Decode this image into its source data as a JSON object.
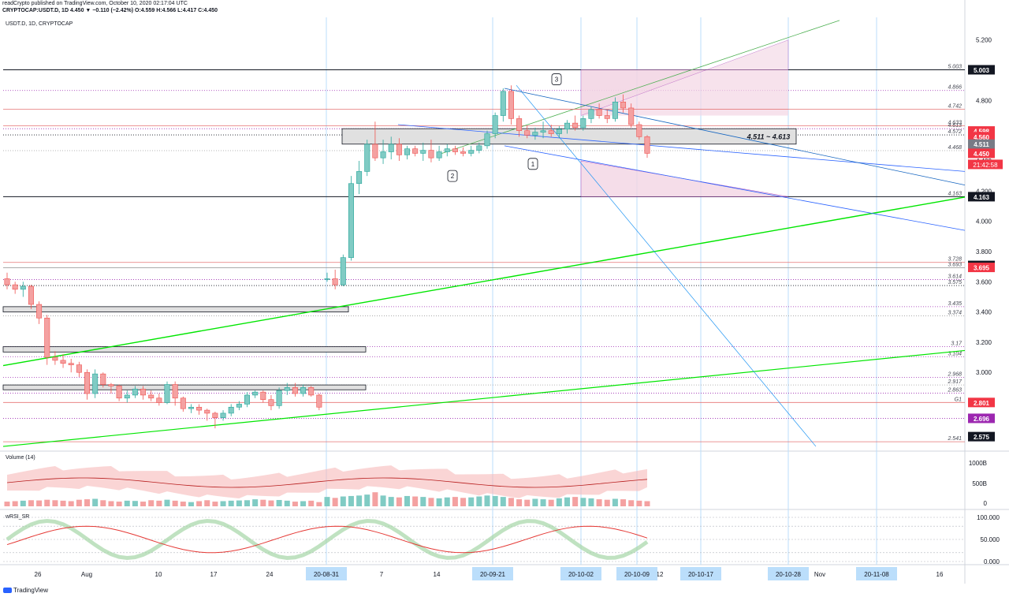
{
  "header": {
    "publisher_line": "readCrypto published on TradingView.com, October 10, 2020 02:17:04 UTC",
    "ticker_line": "CRYPTOCAP:USDT.D, 1D 4.450 ▼ −0.110 (−2.42%) O:4.559 H:4.566 L:4.417 C:4.450"
  },
  "footer": {
    "brand": "TradingView"
  },
  "chart_data": {
    "type": "candlestick",
    "symbol_label": "USDT.D, 1D, CRYPTOCAP",
    "ylim": [
      2.5,
      5.35
    ],
    "y_ticks": [
      5.2,
      4.8,
      4.6,
      4.4,
      4.2,
      4.0,
      3.8,
      3.6,
      3.4,
      3.2,
      3.0,
      2.8
    ],
    "y_tick_labels": [
      "5.200",
      "4.800",
      "4.600",
      "4.400",
      "4.200",
      "4.000",
      "3.800",
      "3.600",
      "3.400",
      "3.200",
      "3.000",
      "2.800"
    ],
    "x_labels": [
      "26",
      "Aug",
      "10",
      "17",
      "24",
      "7",
      "14",
      "12",
      "Nov",
      "16"
    ],
    "highlighted_dates": [
      "20-08-31",
      "20-09-21",
      "20-10-02",
      "20-10-09",
      "20-10-17",
      "20-10-28",
      "20-11-08"
    ],
    "candles": [
      [
        3.62,
        3.66,
        3.55,
        3.58
      ],
      [
        3.58,
        3.6,
        3.52,
        3.55
      ],
      [
        3.55,
        3.6,
        3.5,
        3.57
      ],
      [
        3.57,
        3.58,
        3.42,
        3.45
      ],
      [
        3.45,
        3.47,
        3.32,
        3.36
      ],
      [
        3.36,
        3.38,
        3.05,
        3.1
      ],
      [
        3.1,
        3.14,
        3.05,
        3.08
      ],
      [
        3.08,
        3.12,
        3.03,
        3.06
      ],
      [
        3.06,
        3.09,
        3.0,
        3.05
      ],
      [
        3.05,
        3.07,
        2.97,
        3.0
      ],
      [
        3.0,
        3.02,
        2.82,
        2.86
      ],
      [
        2.86,
        3.02,
        2.83,
        2.99
      ],
      [
        2.99,
        3.0,
        2.9,
        2.92
      ],
      [
        2.92,
        2.93,
        2.86,
        2.91
      ],
      [
        2.91,
        2.92,
        2.81,
        2.83
      ],
      [
        2.83,
        2.88,
        2.8,
        2.85
      ],
      [
        2.85,
        2.91,
        2.83,
        2.89
      ],
      [
        2.89,
        2.91,
        2.82,
        2.85
      ],
      [
        2.85,
        2.88,
        2.81,
        2.83
      ],
      [
        2.83,
        2.86,
        2.78,
        2.8
      ],
      [
        2.8,
        2.94,
        2.79,
        2.92
      ],
      [
        2.92,
        2.94,
        2.78,
        2.83
      ],
      [
        2.83,
        2.84,
        2.74,
        2.76
      ],
      [
        2.76,
        2.79,
        2.73,
        2.77
      ],
      [
        2.77,
        2.79,
        2.72,
        2.75
      ],
      [
        2.75,
        2.76,
        2.68,
        2.73
      ],
      [
        2.73,
        2.74,
        2.63,
        2.7
      ],
      [
        2.7,
        2.75,
        2.68,
        2.73
      ],
      [
        2.73,
        2.79,
        2.71,
        2.77
      ],
      [
        2.77,
        2.81,
        2.75,
        2.79
      ],
      [
        2.79,
        2.87,
        2.77,
        2.85
      ],
      [
        2.85,
        2.88,
        2.83,
        2.87
      ],
      [
        2.87,
        2.88,
        2.8,
        2.82
      ],
      [
        2.82,
        2.85,
        2.75,
        2.78
      ],
      [
        2.78,
        2.9,
        2.76,
        2.88
      ],
      [
        2.88,
        2.93,
        2.85,
        2.9
      ],
      [
        2.9,
        2.93,
        2.84,
        2.86
      ],
      [
        2.86,
        2.92,
        2.84,
        2.9
      ],
      [
        2.9,
        2.91,
        2.84,
        2.85
      ],
      [
        2.85,
        2.86,
        2.75,
        2.77
      ],
      [
        3.62,
        3.66,
        3.6,
        3.62
      ],
      [
        3.62,
        3.68,
        3.55,
        3.58
      ],
      [
        3.58,
        3.78,
        3.57,
        3.76
      ],
      [
        3.76,
        4.3,
        3.74,
        4.25
      ],
      [
        4.25,
        4.4,
        4.18,
        4.33
      ],
      [
        4.33,
        4.54,
        4.3,
        4.51
      ],
      [
        4.51,
        4.66,
        4.4,
        4.42
      ],
      [
        4.42,
        4.54,
        4.38,
        4.46
      ],
      [
        4.46,
        4.56,
        4.41,
        4.51
      ],
      [
        4.51,
        4.55,
        4.4,
        4.44
      ],
      [
        4.44,
        4.5,
        4.41,
        4.48
      ],
      [
        4.48,
        4.5,
        4.43,
        4.45
      ],
      [
        4.45,
        4.52,
        4.4,
        4.47
      ],
      [
        4.47,
        4.54,
        4.39,
        4.42
      ],
      [
        4.42,
        4.5,
        4.4,
        4.46
      ],
      [
        4.46,
        4.51,
        4.43,
        4.48
      ],
      [
        4.48,
        4.5,
        4.44,
        4.46
      ],
      [
        4.46,
        4.49,
        4.43,
        4.45
      ],
      [
        4.45,
        4.5,
        4.43,
        4.47
      ],
      [
        4.47,
        4.52,
        4.45,
        4.5
      ],
      [
        4.5,
        4.6,
        4.48,
        4.58
      ],
      [
        4.58,
        4.72,
        4.55,
        4.7
      ],
      [
        4.7,
        4.88,
        4.66,
        4.86
      ],
      [
        4.86,
        4.9,
        4.64,
        4.68
      ],
      [
        4.68,
        4.7,
        4.56,
        4.6
      ],
      [
        4.6,
        4.63,
        4.55,
        4.57
      ],
      [
        4.57,
        4.62,
        4.54,
        4.59
      ],
      [
        4.59,
        4.66,
        4.55,
        4.6
      ],
      [
        4.6,
        4.64,
        4.56,
        4.58
      ],
      [
        4.58,
        4.63,
        4.55,
        4.61
      ],
      [
        4.61,
        4.67,
        4.58,
        4.65
      ],
      [
        4.65,
        4.7,
        4.6,
        4.62
      ],
      [
        4.62,
        4.7,
        4.6,
        4.68
      ],
      [
        4.68,
        4.76,
        4.65,
        4.74
      ],
      [
        4.74,
        4.78,
        4.68,
        4.7
      ],
      [
        4.7,
        4.74,
        4.65,
        4.68
      ],
      [
        4.68,
        4.82,
        4.66,
        4.79
      ],
      [
        4.79,
        4.84,
        4.72,
        4.75
      ],
      [
        4.75,
        4.78,
        4.62,
        4.64
      ],
      [
        4.64,
        4.66,
        4.54,
        4.56
      ],
      [
        4.56,
        4.57,
        4.42,
        4.45
      ]
    ],
    "candle_dates_note": "",
    "volume": [
      20,
      22,
      24,
      26,
      25,
      28,
      26,
      24,
      22,
      28,
      30,
      32,
      26,
      22,
      20,
      24,
      23,
      20,
      26,
      24,
      28,
      24,
      20,
      18,
      22,
      26,
      20,
      22,
      24,
      25,
      26,
      30,
      28,
      25,
      27,
      24,
      20,
      22,
      24,
      18,
      40,
      36,
      42,
      44,
      46,
      50,
      60,
      46,
      40,
      38,
      44,
      42,
      40,
      36,
      34,
      38,
      40,
      36,
      38,
      42,
      46,
      44,
      40,
      36,
      30,
      28,
      32,
      30,
      28,
      34,
      38,
      40,
      36,
      34,
      30,
      28,
      32,
      30,
      26,
      24,
      22
    ],
    "volume_axis": {
      "ticks": [
        "1000B",
        "500B",
        "0"
      ]
    },
    "rsi_axis": {
      "ticks": [
        "100.000",
        "50.000",
        "0.000"
      ]
    },
    "panel_labels": {
      "volume": "Volume (14)",
      "rsi": "wRSI_SR"
    },
    "horizontal_levels": [
      {
        "value": 5.003,
        "label": "5.003",
        "style": "solid",
        "color": "#131722",
        "badge": true
      },
      {
        "value": 4.866,
        "label": "4.866",
        "style": "dotted",
        "color": "#9c27b0"
      },
      {
        "value": 4.742,
        "label": "4.742",
        "style": "solid",
        "color": "#e57373"
      },
      {
        "value": 4.633,
        "label": "4.633",
        "style": "solid",
        "color": "#e57373"
      },
      {
        "value": 4.613,
        "label": "4.613",
        "style": "dotted",
        "color": "#9c27b0"
      },
      {
        "value": 4.572,
        "label": "4.572",
        "style": "dotted",
        "color": "#131722"
      },
      {
        "value": 4.468,
        "label": "4.468",
        "style": "dotted",
        "color": "#9e9e9e"
      },
      {
        "value": 4.163,
        "label": "4.163",
        "style": "solid",
        "color": "#131722",
        "badge": true
      },
      {
        "value": 3.728,
        "label": "3.728",
        "style": "solid",
        "color": "#e57373"
      },
      {
        "value": 3.693,
        "label": "3.693",
        "style": "solid",
        "color": "#9e9e9e"
      },
      {
        "value": 3.614,
        "label": "3.614",
        "style": "dotted",
        "color": "#9c27b0"
      },
      {
        "value": 3.575,
        "label": "3.575",
        "style": "dotted",
        "color": "#131722"
      },
      {
        "value": 3.435,
        "label": "3.435",
        "style": "dotted",
        "color": "#9c27b0"
      },
      {
        "value": 3.374,
        "label": "3.374",
        "style": "dotted",
        "color": "#9e9e9e"
      },
      {
        "value": 3.17,
        "label": "3.17",
        "style": "dotted",
        "color": "#9c27b0"
      },
      {
        "value": 3.104,
        "label": "3.104",
        "style": "dotted",
        "color": "#9c27b0"
      },
      {
        "value": 2.968,
        "label": "2.968",
        "style": "dotted",
        "color": "#9c27b0"
      },
      {
        "value": 2.917,
        "label": "2.917",
        "style": "dotted",
        "color": "#9e9e9e"
      },
      {
        "value": 2.863,
        "label": "2.863",
        "style": "dotted",
        "color": "#9c27b0"
      },
      {
        "value": 2.801,
        "label": "G1",
        "style": "solid",
        "color": "#e57373"
      },
      {
        "value": 2.696,
        "label": "",
        "style": "dotted",
        "color": "#9c27b0"
      },
      {
        "value": 2.541,
        "label": "2.541",
        "style": "solid",
        "color": "#e57373"
      }
    ],
    "price_badges": [
      {
        "value": 5.003,
        "label": "5.003",
        "bg": "#131722"
      },
      {
        "value": 4.598,
        "label": "4.598",
        "bg": "#f23645"
      },
      {
        "value": 4.56,
        "label": "4.560",
        "bg": "#f23645"
      },
      {
        "value": 4.511,
        "label": "4.511",
        "bg": "#787b86"
      },
      {
        "value": 4.45,
        "label": "4.450",
        "bg": "#f23645"
      },
      {
        "value": 4.163,
        "label": "4.163",
        "bg": "#131722"
      },
      {
        "value": 3.708,
        "label": "3.708",
        "bg": "#131722"
      },
      {
        "value": 3.695,
        "label": "3.695",
        "bg": "#f23645"
      },
      {
        "value": 2.801,
        "label": "2.801",
        "bg": "#f23645"
      },
      {
        "value": 2.696,
        "label": "2.696",
        "bg": "#9c27b0"
      },
      {
        "value": 2.575,
        "label": "2.575",
        "bg": "#131722"
      }
    ],
    "countdown": "21:42:58",
    "range_box_label": "4.511 ~ 4.613",
    "annotations": [
      "1",
      "2",
      "3"
    ]
  }
}
